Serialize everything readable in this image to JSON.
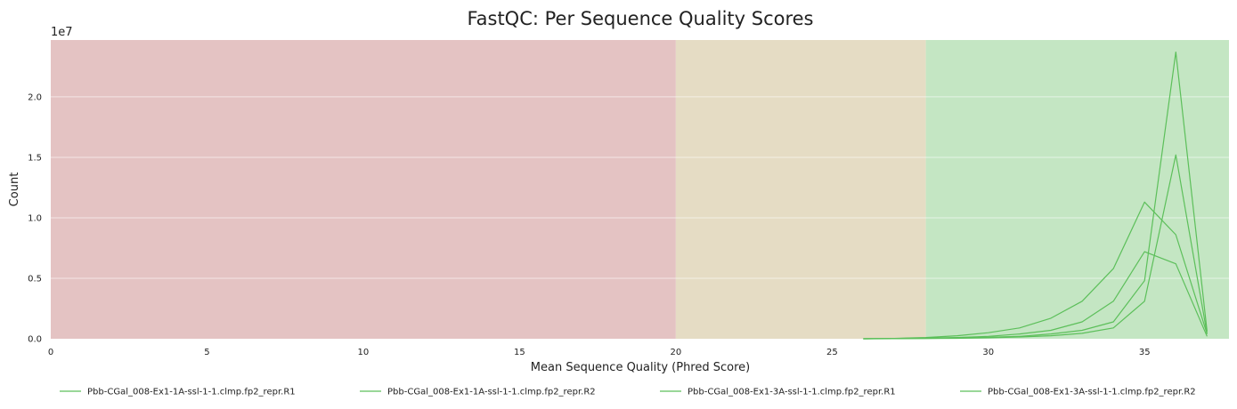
{
  "chart_data": {
    "type": "line",
    "title": "FastQC: Per Sequence Quality Scores",
    "xlabel": "Mean Sequence Quality (Phred Score)",
    "ylabel": "Count",
    "y_offset_label": "1e7",
    "xlim": [
      0,
      37.7
    ],
    "ylim": [
      0,
      2.47
    ],
    "y_scale_factor": 10000000,
    "x_ticks": [
      0,
      5,
      10,
      15,
      20,
      25,
      30,
      35
    ],
    "x_tick_labels": [
      "0",
      "5",
      "10",
      "15",
      "20",
      "25",
      "30",
      "35"
    ],
    "y_ticks": [
      0,
      0.5,
      1.0,
      1.5,
      2.0
    ],
    "y_tick_labels": [
      "0.0",
      "0.5",
      "1.0",
      "1.5",
      "2.0"
    ],
    "grid": "horizontal",
    "legend_position": "bottom",
    "bands": [
      {
        "from": 0,
        "to": 20,
        "color": "#e4c3c3"
      },
      {
        "from": 20,
        "to": 28,
        "color": "#e5dcc4"
      },
      {
        "from": 28,
        "to": 37.7,
        "color": "#c4e6c3"
      }
    ],
    "line_color": "#5cbf5a",
    "series": [
      {
        "name": "Pbb-CGal_008-Ex1-1A-ssl-1-1.clmp.fp2_repr.R1",
        "x": [
          26,
          27,
          28,
          29,
          30,
          31,
          32,
          33,
          34,
          35,
          36,
          37
        ],
        "y": [
          0.0,
          0.003,
          0.01,
          0.025,
          0.05,
          0.09,
          0.17,
          0.31,
          0.58,
          1.13,
          0.86,
          0.04
        ]
      },
      {
        "name": "Pbb-CGal_008-Ex1-1A-ssl-1-1.clmp.fp2_repr.R2",
        "x": [
          26,
          27,
          28,
          29,
          30,
          31,
          32,
          33,
          34,
          35,
          36,
          37
        ],
        "y": [
          0.0,
          0.002,
          0.006,
          0.01,
          0.02,
          0.04,
          0.07,
          0.14,
          0.31,
          0.72,
          0.62,
          0.02
        ]
      },
      {
        "name": "Pbb-CGal_008-Ex1-3A-ssl-1-1.clmp.fp2_repr.R1",
        "x": [
          26,
          27,
          28,
          29,
          30,
          31,
          32,
          33,
          34,
          35,
          36,
          37
        ],
        "y": [
          0.0,
          0.001,
          0.003,
          0.006,
          0.012,
          0.02,
          0.04,
          0.07,
          0.14,
          0.48,
          2.37,
          0.06
        ]
      },
      {
        "name": "Pbb-CGal_008-Ex1-3A-ssl-1-1.clmp.fp2_repr.R2",
        "x": [
          26,
          27,
          28,
          29,
          30,
          31,
          32,
          33,
          34,
          35,
          36,
          37
        ],
        "y": [
          0.0,
          0.001,
          0.002,
          0.004,
          0.008,
          0.015,
          0.025,
          0.045,
          0.09,
          0.31,
          1.52,
          0.04
        ]
      }
    ]
  }
}
